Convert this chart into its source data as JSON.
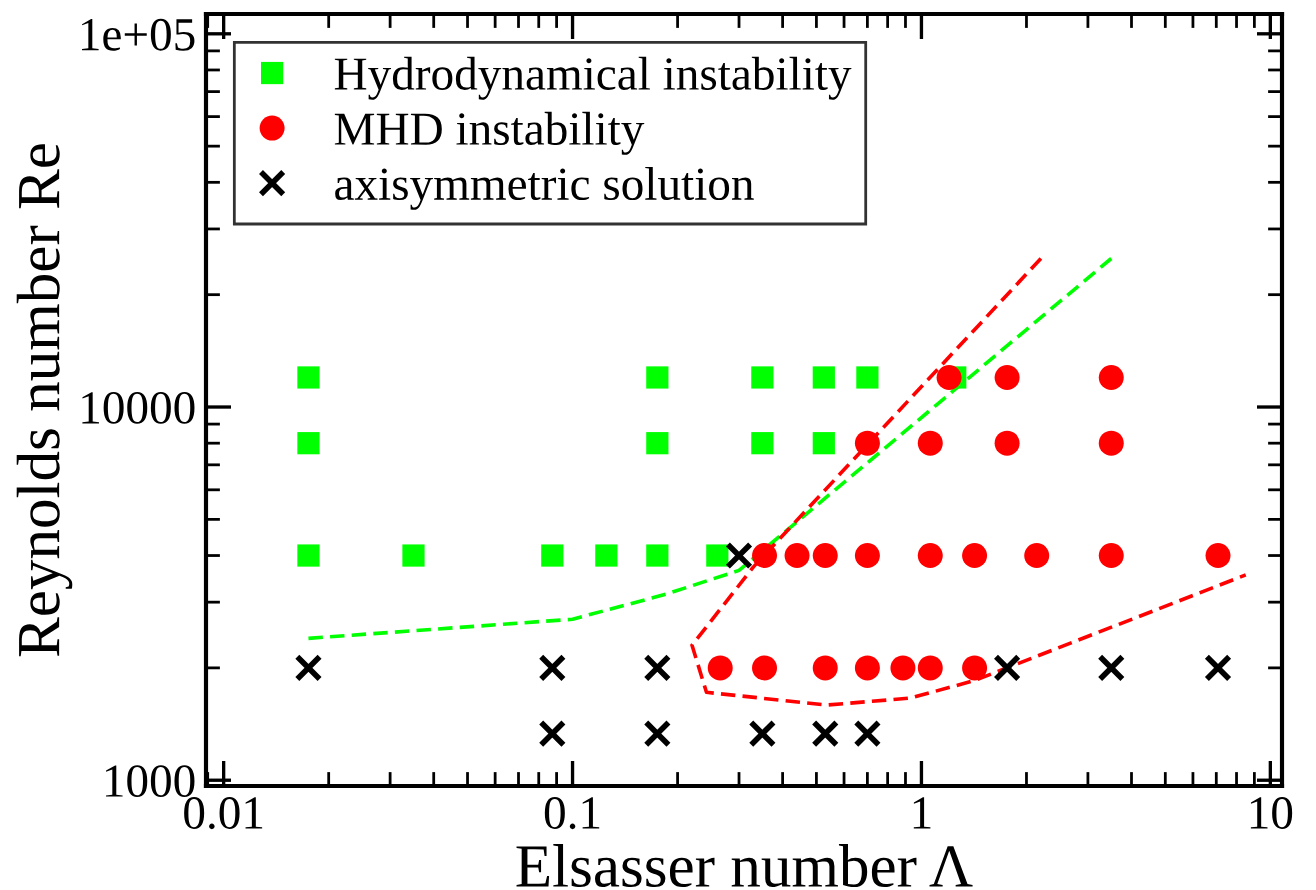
{
  "chart_data": {
    "type": "scatter",
    "xlabel": "Elsasser number Λ",
    "ylabel": "Reynolds number Re",
    "log": "xy",
    "xlim": [
      0.0089,
      10.8
    ],
    "ylim": [
      965,
      113000
    ],
    "xticks": [
      0.01,
      0.1,
      1,
      10
    ],
    "yticks": [
      1000,
      10000,
      {
        "value": 100000,
        "label": "1e+05"
      }
    ],
    "grid": false,
    "legend": "top left",
    "series": [
      {
        "name": "Hydrodynamical instability",
        "marker": "square",
        "color": "#00ff00",
        "x": [
          0.0175,
          0.0175,
          0.0175,
          0.035,
          0.0875,
          0.125,
          0.175,
          0.175,
          0.175,
          0.26,
          0.35,
          0.35,
          0.525,
          0.525,
          0.7,
          1.25
        ],
        "values": [
          12000,
          8000,
          4000,
          4000,
          4000,
          4000,
          12000,
          8000,
          4000,
          4000,
          12000,
          8000,
          12000,
          8000,
          12000,
          12000
        ]
      },
      {
        "name": "MHD instability",
        "marker": "circle",
        "color": "#ff0000",
        "x": [
          1.2,
          1.76,
          3.5,
          0.7,
          1.06,
          1.76,
          3.5,
          0.355,
          0.44,
          0.53,
          0.7,
          1.06,
          1.42,
          2.14,
          3.5,
          7.08,
          0.265,
          0.355,
          0.53,
          0.7,
          0.885,
          1.06,
          1.42
        ],
        "values": [
          12000,
          12000,
          12000,
          8000,
          8000,
          8000,
          8000,
          4000,
          4000,
          4000,
          4000,
          4000,
          4000,
          4000,
          4000,
          4000,
          2000,
          2000,
          2000,
          2000,
          2000,
          2000,
          2000
        ]
      },
      {
        "name": "axisymmetric solution",
        "marker": "cross",
        "color": "#000000",
        "x": [
          0.0175,
          0.0875,
          0.175,
          1.76,
          3.5,
          7.08,
          0.0875,
          0.175,
          0.35,
          0.53,
          0.7,
          0.3
        ],
        "values": [
          2000,
          2000,
          2000,
          2000,
          2000,
          2000,
          1333,
          1333,
          1333,
          1333,
          1333,
          4000
        ]
      },
      {
        "type": "line",
        "line_style": "dashed",
        "marker": "none",
        "color": "#00ff00",
        "x": [
          0.0175,
          0.1,
          0.185,
          0.3,
          3.5
        ],
        "values": [
          2400,
          2700,
          3150,
          3650,
          25000
        ]
      },
      {
        "type": "line",
        "line_style": "dashed",
        "marker": "none",
        "color": "#ff0000",
        "x": [
          2.2,
          0.33,
          0.22,
          0.242,
          0.535,
          0.93,
          1.42,
          8.5
        ],
        "values": [
          25000,
          3730,
          2300,
          1720,
          1590,
          1660,
          1850,
          3550
        ]
      }
    ]
  }
}
